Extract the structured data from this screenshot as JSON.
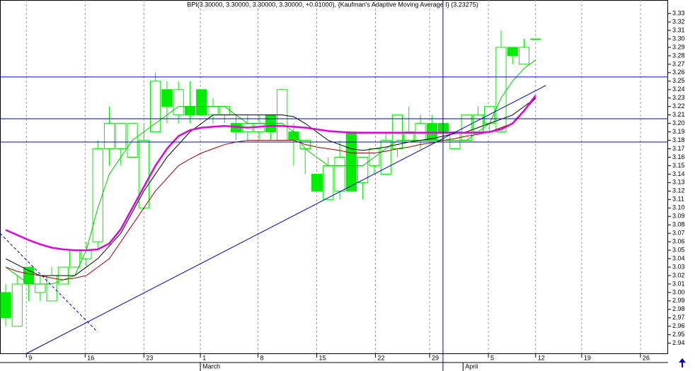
{
  "chart_data": {
    "type": "candlestick",
    "title": "BPI(3.30000, 3.30000, 3.30000, 3.30000, +0.01000), {Kaufman's Adaptive Moving Average I} (3.23275)",
    "open": [
      3.0,
      2.96,
      3.03,
      3.0,
      2.99,
      3.01,
      3.03,
      3.04,
      3.06,
      3.17,
      3.17,
      3.16,
      3.1,
      3.19,
      3.24,
      3.21,
      3.22,
      3.24,
      3.21,
      3.21,
      3.2,
      3.19,
      3.19,
      3.21,
      3.18,
      3.19,
      3.17,
      3.14,
      3.11,
      3.12,
      3.19,
      3.13,
      3.15,
      3.14,
      3.17,
      3.18,
      3.18,
      3.2,
      3.2,
      3.17,
      3.18,
      3.19,
      3.2,
      3.19,
      3.29,
      3.27,
      3.3
    ],
    "high": [
      3.01,
      3.02,
      3.03,
      3.02,
      3.03,
      3.03,
      3.05,
      3.06,
      3.18,
      3.22,
      3.2,
      3.2,
      3.2,
      3.26,
      3.25,
      3.25,
      3.25,
      3.24,
      3.23,
      3.22,
      3.21,
      3.21,
      3.21,
      3.21,
      3.24,
      3.2,
      3.18,
      3.14,
      3.16,
      3.18,
      3.19,
      3.16,
      3.17,
      3.19,
      3.21,
      3.22,
      3.21,
      3.21,
      3.2,
      3.19,
      3.21,
      3.22,
      3.22,
      3.31,
      3.29,
      3.3,
      3.3
    ],
    "low": [
      2.96,
      2.96,
      2.99,
      2.99,
      2.99,
      3.01,
      3.03,
      3.03,
      3.05,
      3.15,
      3.15,
      3.16,
      3.1,
      3.19,
      3.2,
      3.2,
      3.2,
      3.21,
      3.2,
      3.2,
      3.18,
      3.18,
      3.18,
      3.18,
      3.18,
      3.15,
      3.14,
      3.12,
      3.11,
      3.11,
      3.12,
      3.11,
      3.14,
      3.14,
      3.16,
      3.18,
      3.17,
      3.18,
      3.18,
      3.17,
      3.18,
      3.19,
      3.19,
      3.19,
      3.27,
      3.27,
      3.3
    ],
    "close": [
      2.97,
      3.01,
      3.01,
      3.01,
      3.02,
      3.03,
      3.05,
      3.05,
      3.17,
      3.2,
      3.2,
      3.2,
      3.18,
      3.25,
      3.22,
      3.24,
      3.21,
      3.21,
      3.22,
      3.22,
      3.19,
      3.2,
      3.2,
      3.19,
      3.24,
      3.18,
      3.18,
      3.12,
      3.15,
      3.16,
      3.12,
      3.16,
      3.17,
      3.18,
      3.21,
      3.19,
      3.2,
      3.18,
      3.19,
      3.19,
      3.21,
      3.21,
      3.22,
      3.29,
      3.28,
      3.29,
      3.3
    ],
    "candle_color": "#00ee00",
    "indicators": [
      {
        "color": "#00cc00",
        "values": [
          3.03,
          3.02,
          3.01,
          3.01,
          3.01,
          3.015,
          3.02,
          3.05,
          3.1,
          3.14,
          3.16,
          3.18,
          3.19,
          3.2,
          3.21,
          3.22,
          3.22,
          3.22,
          3.22,
          3.22,
          3.21,
          3.2,
          3.2,
          3.2,
          3.2,
          3.19,
          3.17,
          3.16,
          3.15,
          3.15,
          3.15,
          3.15,
          3.16,
          3.17,
          3.18,
          3.18,
          3.18,
          3.18,
          3.18,
          3.18,
          3.18,
          3.19,
          3.2,
          3.23,
          3.25,
          3.265,
          3.275
        ]
      },
      {
        "color": "#a00000",
        "values": [
          3.03,
          3.025,
          3.022,
          3.02,
          3.017,
          3.015,
          3.017,
          3.02,
          3.03,
          3.04,
          3.06,
          3.08,
          3.1,
          3.12,
          3.135,
          3.15,
          3.158,
          3.165,
          3.17,
          3.175,
          3.178,
          3.18,
          3.18,
          3.18,
          3.18,
          3.18,
          3.175,
          3.172,
          3.17,
          3.168,
          3.165,
          3.165,
          3.165,
          3.167,
          3.17,
          3.172,
          3.175,
          3.177,
          3.18,
          3.182,
          3.185,
          3.187,
          3.19,
          3.195,
          3.2,
          3.215,
          3.23
        ]
      },
      {
        "color": "#000000",
        "values": [
          3.04,
          3.033,
          3.026,
          3.02,
          3.02,
          3.02,
          3.02,
          3.03,
          3.04,
          3.055,
          3.07,
          3.095,
          3.12,
          3.14,
          3.16,
          3.175,
          3.19,
          3.2,
          3.21,
          3.21,
          3.21,
          3.21,
          3.21,
          3.21,
          3.21,
          3.208,
          3.2,
          3.19,
          3.18,
          3.175,
          3.17,
          3.168,
          3.17,
          3.172,
          3.175,
          3.178,
          3.18,
          3.182,
          3.185,
          3.188,
          3.19,
          3.195,
          3.2,
          3.205,
          3.21,
          3.22,
          3.23
        ]
      },
      {
        "color": "#e000e0",
        "width": 2.5,
        "values": [
          3.074,
          3.068,
          3.062,
          3.057,
          3.053,
          3.051,
          3.05,
          3.05,
          3.051,
          3.058,
          3.075,
          3.1,
          3.125,
          3.15,
          3.17,
          3.185,
          3.192,
          3.195,
          3.196,
          3.197,
          3.196,
          3.195,
          3.196,
          3.197,
          3.197,
          3.196,
          3.195,
          3.193,
          3.191,
          3.19,
          3.189,
          3.189,
          3.189,
          3.189,
          3.189,
          3.189,
          3.189,
          3.189,
          3.189,
          3.189,
          3.189,
          3.189,
          3.19,
          3.193,
          3.2,
          3.215,
          3.233
        ]
      }
    ],
    "hlines": [
      {
        "value": 3.255,
        "color": "#0000c0"
      },
      {
        "value": 3.2055,
        "color": "#0000c0"
      },
      {
        "value": 3.178,
        "color": "#0000c0"
      }
    ],
    "vlines": [
      {
        "value": 37.96,
        "color": "#0000c0"
      }
    ],
    "trendlines": [
      {
        "x": [
          1.84,
          46.9
        ],
        "y": [
          2.928,
          3.245
        ],
        "color": "#0000c0",
        "dashed": false
      },
      {
        "x": [
          -0.49,
          8.0
        ],
        "y": [
          3.07,
          2.953
        ],
        "color": "#0000c0",
        "dashed": true
      }
    ],
    "xlim": [
      -0.49,
      57.5
    ],
    "ylim": [
      2.928,
      3.346
    ],
    "xticks": [
      {
        "value": 1.8,
        "label": "9"
      },
      {
        "value": 6.9,
        "label": "16"
      },
      {
        "value": 12.0,
        "label": "23"
      },
      {
        "value": 16.9,
        "label": "1"
      },
      {
        "value": 21.9,
        "label": "8"
      },
      {
        "value": 27.0,
        "label": "15"
      },
      {
        "value": 32.1,
        "label": "22"
      },
      {
        "value": 36.8,
        "label": "29"
      },
      {
        "value": 41.9,
        "label": "5"
      },
      {
        "value": 46.0,
        "label": "12"
      },
      {
        "value": 50.0,
        "label": "19"
      },
      {
        "value": 55.1,
        "label": "26"
      }
    ],
    "month_labels": [
      {
        "value": 16.9,
        "label": "March"
      },
      {
        "value": 39.7,
        "label": "April"
      }
    ],
    "yticks": [
      2.94,
      2.95,
      2.96,
      2.97,
      2.98,
      2.99,
      {
        "value": 3.0,
        "label": "3.00"
      },
      3.01,
      3.02,
      3.03,
      3.04,
      3.05,
      3.06,
      3.07,
      3.08,
      3.09,
      {
        "value": 3.1,
        "label": "3.10"
      },
      3.11,
      3.12,
      3.13,
      3.14,
      3.15,
      3.16,
      3.17,
      3.18,
      3.19,
      {
        "value": 3.2,
        "label": "3.20"
      },
      3.21,
      3.22,
      3.23,
      3.24,
      3.25,
      3.26,
      3.27,
      3.28,
      3.29,
      {
        "value": 3.3,
        "label": "3.30"
      },
      3.31,
      3.32,
      3.33
    ],
    "grid": true
  }
}
